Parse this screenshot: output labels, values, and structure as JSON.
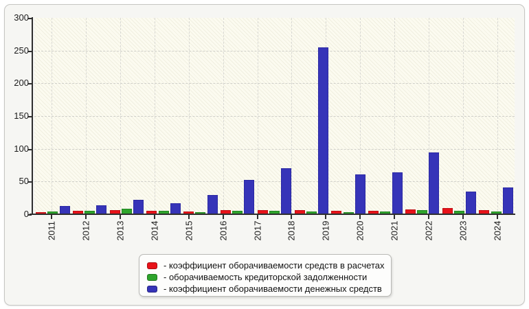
{
  "chart_data": {
    "type": "bar",
    "title": "",
    "xlabel": "",
    "ylabel": "",
    "categories": [
      "2011",
      "2012",
      "2013",
      "2014",
      "2015",
      "2016",
      "2017",
      "2018",
      "2019",
      "2020",
      "2021",
      "2022",
      "2023",
      "2024"
    ],
    "series": [
      {
        "name": "коэффициент оборачиваемости средств в расчетах",
        "color": "#e81219",
        "border_color": "#c00d13",
        "values": [
          3.5,
          5.5,
          6,
          5,
          4,
          6,
          6.5,
          null,
          6,
          5.5,
          5,
          7,
          9,
          6
        ]
      },
      {
        "name": "оборачиваемость кредиторской задолженности",
        "color": "#2ea42c",
        "border_color": "#228522",
        "values": [
          4.5,
          5.5,
          8,
          5.5,
          3.5,
          5.5,
          5.5,
          null,
          4.5,
          3.5,
          4.5,
          6,
          5,
          4.5
        ]
      },
      {
        "name": "коэффициент оборачиваемости денежных средств",
        "color": "#3634b8",
        "border_color": "#2b29a3",
        "values": [
          12.5,
          13.5,
          22.5,
          17,
          29,
          52.5,
          70,
          null,
          254.5,
          60.5,
          64,
          94,
          34.5,
          40.5
        ]
      }
    ],
    "ylim": [
      0,
      300
    ],
    "y_tick_step": 50,
    "y_tick_labels": [
      "0",
      "50",
      "100",
      "150",
      "200",
      "250",
      "300"
    ],
    "grid": true,
    "legend_position": "bottom",
    "note_missing_group": "2018"
  },
  "legend": {
    "items": [
      {
        "label": "- коэффициент оборачиваемости средств в расчетах",
        "color": "#e81219"
      },
      {
        "label": "- оборачиваемость кредиторской задолженности",
        "color": "#2ea42c"
      },
      {
        "label": "- коэффициент оборачиваемости денежных средств",
        "color": "#3634b8"
      }
    ]
  }
}
